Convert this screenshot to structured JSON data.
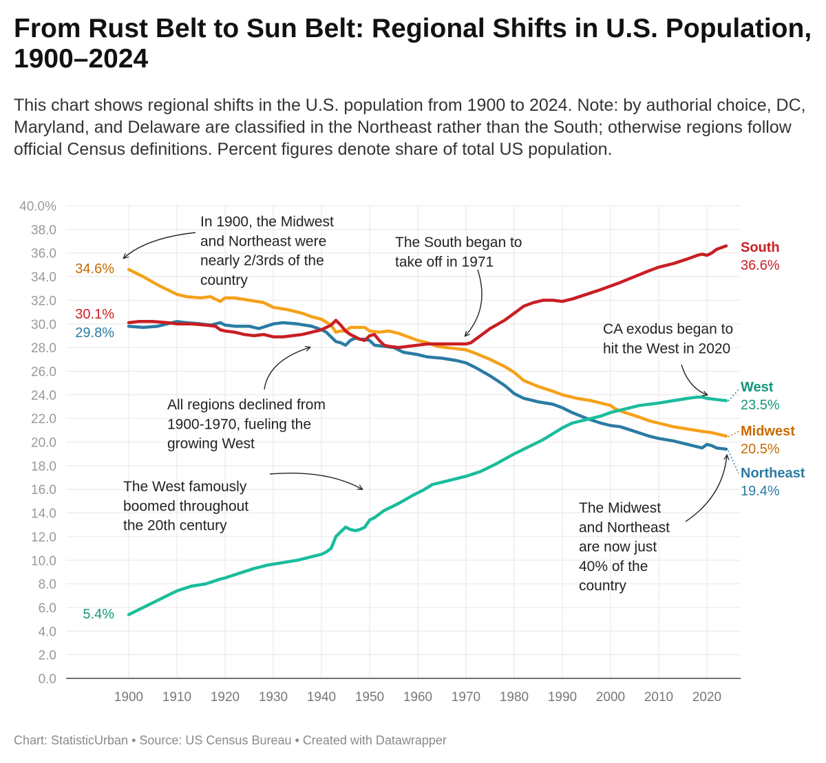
{
  "title": "From Rust Belt to Sun Belt: Regional Shifts in U.S. Population, 1900–2024",
  "description": "This chart shows regional shifts in the U.S. population from 1900 to 2024. Note: by authorial choice, DC, Maryland, and Delaware are classified in the Northeast rather than the South; otherwise regions follow official Census definitions. Percent figures denote share of total US population.",
  "footer": {
    "chart_credit": "Chart: StatisticUrban",
    "source": "Source: US Census Bureau",
    "tool": "Created with Datawrapper",
    "separator": "•"
  },
  "chart_data": {
    "type": "line",
    "xlim": [
      1887,
      2027
    ],
    "ylim": [
      0,
      40
    ],
    "x_ticks": [
      "1900",
      "1910",
      "1920",
      "1930",
      "1940",
      "1950",
      "1960",
      "1970",
      "1980",
      "1990",
      "2000",
      "2010",
      "2020"
    ],
    "y_ticks": [
      "0.0",
      "2.0",
      "4.0",
      "6.0",
      "8.0",
      "10.0",
      "12.0",
      "14.0",
      "16.0",
      "18.0",
      "20.0",
      "22.0",
      "24.0",
      "26.0",
      "28.0",
      "30.0",
      "32.0",
      "34.0",
      "36.0",
      "38.0",
      "40.0%"
    ],
    "grid": true,
    "series": [
      {
        "name": "South",
        "color": "#c91e24",
        "start_label": "30.1%",
        "end_label": "36.6%",
        "points": [
          [
            1900,
            30.1
          ],
          [
            1902,
            30.2
          ],
          [
            1905,
            30.2
          ],
          [
            1908,
            30.1
          ],
          [
            1910,
            30.0
          ],
          [
            1913,
            30.0
          ],
          [
            1916,
            29.9
          ],
          [
            1918,
            29.8
          ],
          [
            1919,
            29.5
          ],
          [
            1920,
            29.4
          ],
          [
            1922,
            29.3
          ],
          [
            1924,
            29.1
          ],
          [
            1926,
            29.0
          ],
          [
            1928,
            29.1
          ],
          [
            1930,
            28.9
          ],
          [
            1932,
            28.9
          ],
          [
            1934,
            29.0
          ],
          [
            1936,
            29.1
          ],
          [
            1938,
            29.3
          ],
          [
            1940,
            29.5
          ],
          [
            1942,
            29.9
          ],
          [
            1943,
            30.3
          ],
          [
            1944,
            29.9
          ],
          [
            1945,
            29.4
          ],
          [
            1946,
            29.1
          ],
          [
            1947,
            28.9
          ],
          [
            1948,
            28.7
          ],
          [
            1949,
            28.6
          ],
          [
            1950,
            29.0
          ],
          [
            1951,
            29.1
          ],
          [
            1952,
            28.6
          ],
          [
            1953,
            28.2
          ],
          [
            1954,
            28.1
          ],
          [
            1956,
            28.0
          ],
          [
            1958,
            28.1
          ],
          [
            1960,
            28.2
          ],
          [
            1962,
            28.3
          ],
          [
            1965,
            28.3
          ],
          [
            1968,
            28.3
          ],
          [
            1970,
            28.3
          ],
          [
            1971,
            28.4
          ],
          [
            1973,
            29.0
          ],
          [
            1975,
            29.6
          ],
          [
            1978,
            30.3
          ],
          [
            1980,
            30.9
          ],
          [
            1982,
            31.5
          ],
          [
            1984,
            31.8
          ],
          [
            1986,
            32.0
          ],
          [
            1988,
            32.0
          ],
          [
            1990,
            31.9
          ],
          [
            1992,
            32.1
          ],
          [
            1995,
            32.5
          ],
          [
            1998,
            32.9
          ],
          [
            2000,
            33.2
          ],
          [
            2002,
            33.5
          ],
          [
            2005,
            34.0
          ],
          [
            2008,
            34.5
          ],
          [
            2010,
            34.8
          ],
          [
            2013,
            35.1
          ],
          [
            2016,
            35.5
          ],
          [
            2018,
            35.8
          ],
          [
            2019,
            35.9
          ],
          [
            2020,
            35.8
          ],
          [
            2021,
            36.0
          ],
          [
            2022,
            36.3
          ],
          [
            2024,
            36.6
          ]
        ]
      },
      {
        "name": "Northeast",
        "color": "#2a7ba3",
        "start_label": "29.8%",
        "end_label": "19.4%",
        "points": [
          [
            1900,
            29.8
          ],
          [
            1903,
            29.7
          ],
          [
            1906,
            29.8
          ],
          [
            1909,
            30.1
          ],
          [
            1910,
            30.2
          ],
          [
            1912,
            30.1
          ],
          [
            1915,
            30.0
          ],
          [
            1917,
            29.9
          ],
          [
            1918,
            30.0
          ],
          [
            1919,
            30.1
          ],
          [
            1920,
            29.9
          ],
          [
            1922,
            29.8
          ],
          [
            1925,
            29.8
          ],
          [
            1927,
            29.6
          ],
          [
            1930,
            30.0
          ],
          [
            1932,
            30.1
          ],
          [
            1935,
            30.0
          ],
          [
            1938,
            29.8
          ],
          [
            1940,
            29.5
          ],
          [
            1941,
            29.3
          ],
          [
            1942,
            28.9
          ],
          [
            1943,
            28.5
          ],
          [
            1944,
            28.4
          ],
          [
            1945,
            28.2
          ],
          [
            1946,
            28.6
          ],
          [
            1947,
            28.8
          ],
          [
            1948,
            28.7
          ],
          [
            1949,
            28.7
          ],
          [
            1950,
            28.6
          ],
          [
            1951,
            28.2
          ],
          [
            1953,
            28.1
          ],
          [
            1955,
            28.0
          ],
          [
            1957,
            27.6
          ],
          [
            1960,
            27.4
          ],
          [
            1962,
            27.2
          ],
          [
            1965,
            27.1
          ],
          [
            1968,
            26.9
          ],
          [
            1970,
            26.7
          ],
          [
            1972,
            26.3
          ],
          [
            1975,
            25.6
          ],
          [
            1978,
            24.8
          ],
          [
            1980,
            24.1
          ],
          [
            1982,
            23.7
          ],
          [
            1985,
            23.4
          ],
          [
            1988,
            23.2
          ],
          [
            1990,
            22.9
          ],
          [
            1992,
            22.5
          ],
          [
            1995,
            22.0
          ],
          [
            1998,
            21.6
          ],
          [
            2000,
            21.4
          ],
          [
            2002,
            21.3
          ],
          [
            2005,
            20.9
          ],
          [
            2008,
            20.5
          ],
          [
            2010,
            20.3
          ],
          [
            2013,
            20.1
          ],
          [
            2016,
            19.8
          ],
          [
            2019,
            19.5
          ],
          [
            2020,
            19.8
          ],
          [
            2021,
            19.7
          ],
          [
            2022,
            19.5
          ],
          [
            2024,
            19.4
          ]
        ]
      },
      {
        "name": "Midwest",
        "color": "#f5a11a",
        "start_label": "34.6%",
        "end_label": "20.5%",
        "points": [
          [
            1900,
            34.6
          ],
          [
            1903,
            34.0
          ],
          [
            1906,
            33.3
          ],
          [
            1909,
            32.7
          ],
          [
            1910,
            32.5
          ],
          [
            1912,
            32.3
          ],
          [
            1915,
            32.2
          ],
          [
            1917,
            32.3
          ],
          [
            1918,
            32.1
          ],
          [
            1919,
            31.9
          ],
          [
            1920,
            32.2
          ],
          [
            1922,
            32.2
          ],
          [
            1925,
            32.0
          ],
          [
            1928,
            31.8
          ],
          [
            1930,
            31.4
          ],
          [
            1933,
            31.2
          ],
          [
            1936,
            30.9
          ],
          [
            1938,
            30.6
          ],
          [
            1940,
            30.4
          ],
          [
            1942,
            29.9
          ],
          [
            1943,
            29.3
          ],
          [
            1944,
            29.4
          ],
          [
            1945,
            29.4
          ],
          [
            1946,
            29.7
          ],
          [
            1948,
            29.7
          ],
          [
            1949,
            29.7
          ],
          [
            1950,
            29.4
          ],
          [
            1952,
            29.3
          ],
          [
            1954,
            29.4
          ],
          [
            1956,
            29.2
          ],
          [
            1958,
            28.9
          ],
          [
            1960,
            28.6
          ],
          [
            1962,
            28.4
          ],
          [
            1964,
            28.1
          ],
          [
            1966,
            28.0
          ],
          [
            1968,
            27.9
          ],
          [
            1970,
            27.8
          ],
          [
            1972,
            27.5
          ],
          [
            1975,
            27.0
          ],
          [
            1978,
            26.4
          ],
          [
            1980,
            25.9
          ],
          [
            1982,
            25.2
          ],
          [
            1985,
            24.7
          ],
          [
            1988,
            24.3
          ],
          [
            1990,
            24.0
          ],
          [
            1993,
            23.7
          ],
          [
            1996,
            23.5
          ],
          [
            1998,
            23.3
          ],
          [
            2000,
            23.1
          ],
          [
            2001,
            22.8
          ],
          [
            2003,
            22.5
          ],
          [
            2006,
            22.1
          ],
          [
            2008,
            21.8
          ],
          [
            2010,
            21.6
          ],
          [
            2013,
            21.3
          ],
          [
            2016,
            21.1
          ],
          [
            2019,
            20.9
          ],
          [
            2021,
            20.8
          ],
          [
            2022,
            20.7
          ],
          [
            2024,
            20.5
          ]
        ]
      },
      {
        "name": "West",
        "color": "#1abc9c",
        "start_label": "5.4%",
        "end_label": "23.5%",
        "points": [
          [
            1900,
            5.4
          ],
          [
            1903,
            6.0
          ],
          [
            1906,
            6.6
          ],
          [
            1909,
            7.2
          ],
          [
            1910,
            7.4
          ],
          [
            1913,
            7.8
          ],
          [
            1916,
            8.0
          ],
          [
            1919,
            8.4
          ],
          [
            1920,
            8.5
          ],
          [
            1923,
            8.9
          ],
          [
            1926,
            9.3
          ],
          [
            1929,
            9.6
          ],
          [
            1932,
            9.8
          ],
          [
            1935,
            10.0
          ],
          [
            1938,
            10.3
          ],
          [
            1940,
            10.5
          ],
          [
            1941,
            10.7
          ],
          [
            1942,
            11.0
          ],
          [
            1943,
            12.0
          ],
          [
            1944,
            12.4
          ],
          [
            1945,
            12.8
          ],
          [
            1946,
            12.6
          ],
          [
            1947,
            12.5
          ],
          [
            1948,
            12.6
          ],
          [
            1949,
            12.8
          ],
          [
            1950,
            13.4
          ],
          [
            1951,
            13.6
          ],
          [
            1953,
            14.2
          ],
          [
            1956,
            14.8
          ],
          [
            1959,
            15.5
          ],
          [
            1961,
            15.9
          ],
          [
            1963,
            16.4
          ],
          [
            1965,
            16.6
          ],
          [
            1968,
            16.9
          ],
          [
            1970,
            17.1
          ],
          [
            1973,
            17.5
          ],
          [
            1976,
            18.1
          ],
          [
            1980,
            19.0
          ],
          [
            1983,
            19.6
          ],
          [
            1986,
            20.2
          ],
          [
            1988,
            20.7
          ],
          [
            1990,
            21.2
          ],
          [
            1992,
            21.6
          ],
          [
            1995,
            21.9
          ],
          [
            1998,
            22.2
          ],
          [
            2000,
            22.5
          ],
          [
            2003,
            22.8
          ],
          [
            2006,
            23.1
          ],
          [
            2010,
            23.3
          ],
          [
            2013,
            23.5
          ],
          [
            2016,
            23.7
          ],
          [
            2018,
            23.8
          ],
          [
            2019,
            23.8
          ],
          [
            2020,
            23.7
          ],
          [
            2022,
            23.6
          ],
          [
            2024,
            23.5
          ]
        ]
      }
    ],
    "annotations": [
      {
        "id": "midwest-northeast-1900",
        "lines": [
          "In 1900, the Midwest",
          "and Northeast were",
          "nearly 2/3rds of the",
          "country"
        ]
      },
      {
        "id": "south-takeoff",
        "lines": [
          "The South began to",
          "take off in 1971"
        ]
      },
      {
        "id": "ca-exodus",
        "lines": [
          "CA exodus began to",
          "hit the West in 2020"
        ]
      },
      {
        "id": "all-regions-declined",
        "lines": [
          "All regions declined from",
          "1900-1970, fueling the",
          "growing West"
        ]
      },
      {
        "id": "west-boomed",
        "lines": [
          "The West famously",
          "boomed throughout",
          "the 20th century"
        ]
      },
      {
        "id": "midwest-northeast-now",
        "lines": [
          "The Midwest",
          "and Northeast",
          "are now just",
          "40% of the",
          "country"
        ]
      }
    ]
  }
}
